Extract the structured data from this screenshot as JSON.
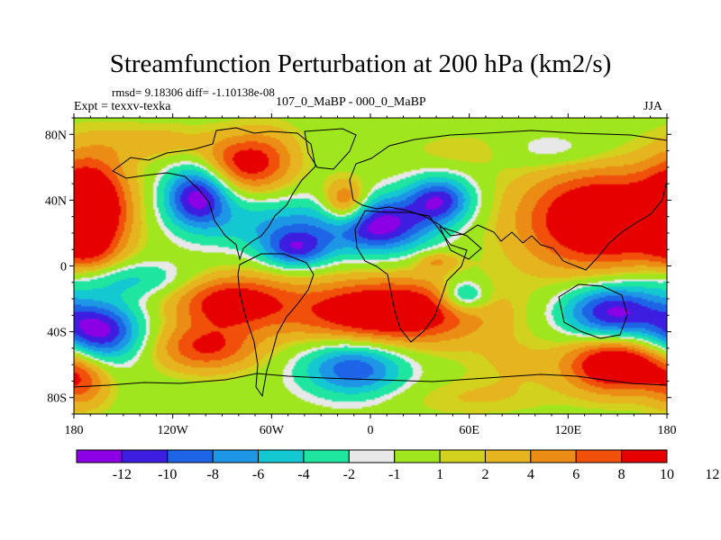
{
  "chart_data": {
    "type": "heatmap",
    "title": "Streamfunction Perturbation at 200 hPa (km2/s)",
    "stats_text": "rmsd= 9.18306 diff= -1.10138e-08",
    "left_label": "Expt = texxv-texka",
    "center_label": "107_0_MaBP - 000_0_MaBP",
    "right_label": "JJA",
    "x_axis": {
      "range": [
        -180,
        180
      ],
      "ticks": [
        -180,
        -120,
        -60,
        0,
        60,
        120,
        180
      ],
      "tick_labels": [
        "180",
        "120W",
        "60W",
        "0",
        "60E",
        "120E",
        "180"
      ]
    },
    "y_axis": {
      "range": [
        -90,
        90
      ],
      "ticks": [
        80,
        40,
        0,
        -40,
        -80
      ],
      "tick_labels": [
        "80N",
        "40N",
        "0",
        "40S",
        "80S"
      ]
    },
    "colorbar": {
      "colors": [
        "#8c00e6",
        "#3d1ee0",
        "#1e64e6",
        "#1e96e6",
        "#14c8d2",
        "#1ee6a0",
        "#e8e8e8",
        "#a0e61e",
        "#d2d21e",
        "#e6b41e",
        "#eb8c14",
        "#f0500a",
        "#e60000"
      ],
      "labels": [
        "-12",
        "-10",
        "-8",
        "-6",
        "-4",
        "-2",
        "-1",
        "1",
        "2",
        "4",
        "6",
        "8",
        "10",
        "12"
      ]
    },
    "field_centers": [
      {
        "lon": -170,
        "lat": 35,
        "value": 12,
        "width": 16,
        "height": 22
      },
      {
        "lon": -105,
        "lat": 42,
        "value": -13,
        "width": 14,
        "height": 13
      },
      {
        "lon": -80,
        "lat": 62,
        "value": 8,
        "width": 16,
        "height": 12
      },
      {
        "lon": -60,
        "lat": 65,
        "value": 4,
        "width": 14,
        "height": 14
      },
      {
        "lon": -55,
        "lat": 25,
        "value": -6,
        "width": 30,
        "height": 12
      },
      {
        "lon": -45,
        "lat": 10,
        "value": -9,
        "width": 14,
        "height": 8
      },
      {
        "lon": -15,
        "lat": 37,
        "value": 10,
        "width": 10,
        "height": 10
      },
      {
        "lon": 5,
        "lat": 25,
        "value": -13,
        "width": 22,
        "height": 12
      },
      {
        "lon": 42,
        "lat": 40,
        "value": -11,
        "width": 14,
        "height": 10
      },
      {
        "lon": 110,
        "lat": 70,
        "value": -3,
        "width": 25,
        "height": 8
      },
      {
        "lon": 140,
        "lat": 28,
        "value": 13,
        "width": 34,
        "height": 22
      },
      {
        "lon": 40,
        "lat": 3,
        "value": 4,
        "width": 9,
        "height": 4
      },
      {
        "lon": -150,
        "lat": -8,
        "value": -5,
        "width": 30,
        "height": 8
      },
      {
        "lon": -85,
        "lat": -22,
        "value": 10,
        "width": 25,
        "height": 12
      },
      {
        "lon": 10,
        "lat": -28,
        "value": 13,
        "width": 40,
        "height": 14
      },
      {
        "lon": 57,
        "lat": -18,
        "value": -8,
        "width": 10,
        "height": 7
      },
      {
        "lon": -165,
        "lat": -40,
        "value": -13,
        "width": 18,
        "height": 13
      },
      {
        "lon": 148,
        "lat": -28,
        "value": -13,
        "width": 22,
        "height": 12
      },
      {
        "lon": -100,
        "lat": -50,
        "value": 8,
        "width": 22,
        "height": 10
      },
      {
        "lon": -10,
        "lat": -62,
        "value": -10,
        "width": 22,
        "height": 12
      },
      {
        "lon": -175,
        "lat": -70,
        "value": 6,
        "width": 12,
        "height": 12
      },
      {
        "lon": 150,
        "lat": -60,
        "value": 13,
        "width": 22,
        "height": 12
      },
      {
        "lon": 85,
        "lat": -58,
        "value": 2,
        "width": 18,
        "height": 12
      },
      {
        "lon": 60,
        "lat": -80,
        "value": 2,
        "width": 35,
        "height": 8
      },
      {
        "lon": -130,
        "lat": 75,
        "value": 3,
        "width": 25,
        "height": 8
      },
      {
        "lon": 60,
        "lat": 70,
        "value": 2,
        "width": 25,
        "height": 8
      },
      {
        "lon": -170,
        "lat": 5,
        "value": 2,
        "width": 12,
        "height": 8
      }
    ]
  }
}
